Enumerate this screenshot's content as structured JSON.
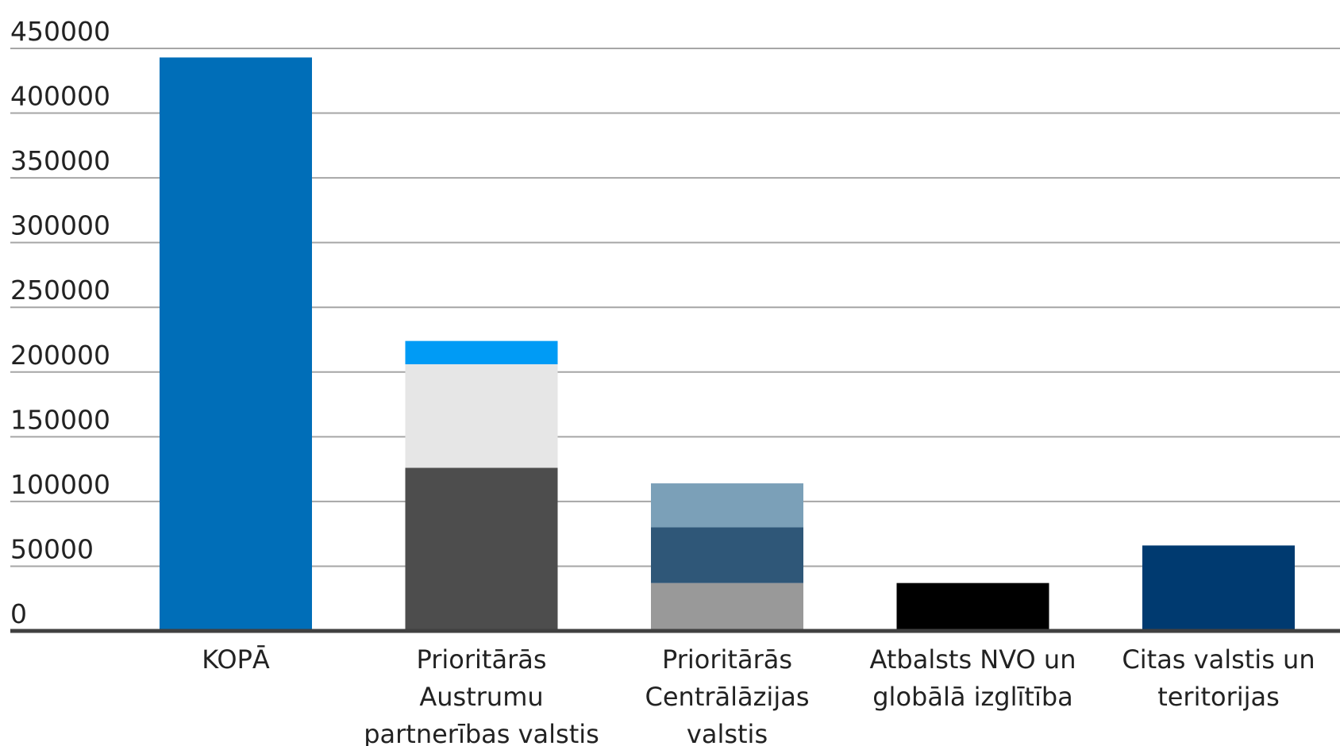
{
  "chart_data": {
    "type": "bar",
    "stacked": true,
    "title": "",
    "xlabel": "",
    "ylabel": "",
    "ylim": [
      0,
      450000
    ],
    "ytick_step": 50000,
    "yticks": [
      "0",
      "50000",
      "100000",
      "150000",
      "200000",
      "250000",
      "300000",
      "350000",
      "400000",
      "450000"
    ],
    "grid": true,
    "legend": "none",
    "categories": [
      [
        "KOPĀ"
      ],
      [
        "Prioritārās",
        "Austrumu",
        "partnerības valstis"
      ],
      [
        "Prioritārās",
        "Centrālāzijas",
        "valstis"
      ],
      [
        "Atbalsts NVO un",
        "globālā izglītība"
      ],
      [
        "Citas valstis un",
        "teritorijas"
      ]
    ],
    "bars": [
      {
        "segments": [
          {
            "value": 443000,
            "color": "#006eb8"
          }
        ]
      },
      {
        "segments": [
          {
            "value": 126000,
            "color": "#4d4d4d"
          },
          {
            "value": 80000,
            "color": "#e6e6e6"
          },
          {
            "value": 18000,
            "color": "#009bf5"
          }
        ]
      },
      {
        "segments": [
          {
            "value": 37000,
            "color": "#999999"
          },
          {
            "value": 43000,
            "color": "#2f5778"
          },
          {
            "value": 34000,
            "color": "#7ba0b8"
          }
        ]
      },
      {
        "segments": [
          {
            "value": 37000,
            "color": "#000000"
          }
        ]
      },
      {
        "segments": [
          {
            "value": 66000,
            "color": "#003a70"
          }
        ]
      }
    ],
    "colors": {
      "grid": "#a6a6a6",
      "axis": "#404040"
    }
  }
}
